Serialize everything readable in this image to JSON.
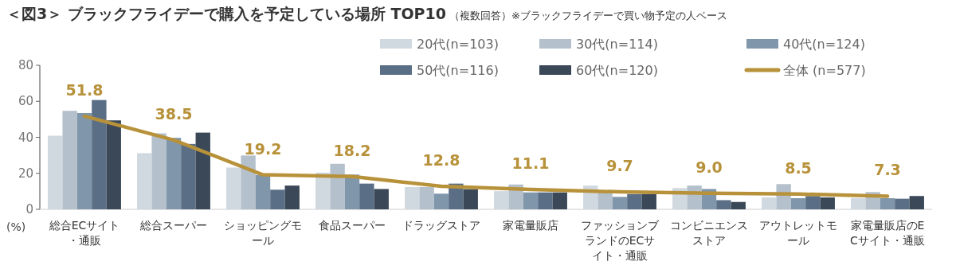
{
  "chart_data": {
    "type": "bar",
    "title": "＜図3＞ ブラックフライデーで購入を予定している場所 TOP10",
    "subtitle": "（複数回答）※ブラックフライデーで買い物予定の人ベース",
    "ylabel": "(%)",
    "categories": [
      "総合ECサイト・通販",
      "総合スーパー",
      "ショッピングモール",
      "食品スーパー",
      "ドラッグストア",
      "家電量販店",
      "ファッションブランドのECサイト・通販",
      "コンビニエンスストア",
      "アウトレットモール",
      "家電量販店のECサイト・通販"
    ],
    "ylim": [
      0,
      80
    ],
    "yticks": [
      0,
      20,
      40,
      60,
      80
    ],
    "legend": "top right",
    "series": [
      {
        "name": "20代(n=103)",
        "color": "#d0d8e0",
        "values": [
          40.9,
          31.2,
          23.2,
          20.4,
          12.4,
          10.1,
          13.2,
          11.8,
          6.6,
          6.2
        ]
      },
      {
        "name": "30代(n=114)",
        "color": "#b4c0cc",
        "values": [
          54.7,
          42.2,
          29.9,
          25.3,
          12.4,
          13.8,
          10.0,
          13.2,
          14.0,
          9.6
        ]
      },
      {
        "name": "40代(n=124)",
        "color": "#8096aa",
        "values": [
          53.5,
          39.7,
          19.1,
          19.3,
          8.7,
          9.4,
          6.9,
          11.3,
          6.2,
          6.2
        ]
      },
      {
        "name": "50代(n=116)",
        "color": "#5a6e86",
        "values": [
          60.7,
          36.3,
          10.9,
          14.3,
          14.3,
          9.4,
          8.5,
          5.1,
          7.4,
          5.9
        ]
      },
      {
        "name": "60代(n=120)",
        "color": "#3a4858",
        "values": [
          49.4,
          42.6,
          13.2,
          11.3,
          11.2,
          9.4,
          8.5,
          4.1,
          6.6,
          7.4
        ]
      },
      {
        "name": "全体 (n=577)",
        "type": "line",
        "color": "#b8923a",
        "values": [
          51.8,
          38.5,
          19.2,
          18.2,
          12.8,
          11.1,
          9.7,
          9.0,
          8.5,
          7.3
        ],
        "value_labels": [
          "51.8",
          "38.5",
          "19.2",
          "18.2",
          "12.8",
          "11.1",
          "9.7",
          "9.0",
          "8.5",
          "7.3"
        ]
      }
    ]
  }
}
